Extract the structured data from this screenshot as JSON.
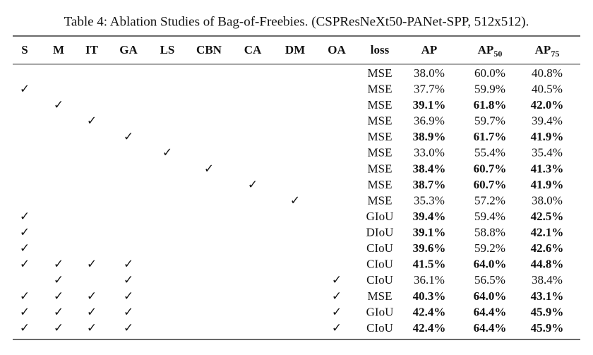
{
  "table": {
    "caption": "Table 4: Ablation Studies of Bag-of-Freebies. (CSPResNeXt50-PANet-SPP, 512x512).",
    "header": [
      "S",
      "M",
      "IT",
      "GA",
      "LS",
      "CBN",
      "CA",
      "DM",
      "OA",
      "loss",
      "AP",
      {
        "text": "AP",
        "sub": "50"
      },
      {
        "text": "AP",
        "sub": "75"
      }
    ],
    "rows": [
      {
        "checks": [
          null,
          null,
          null,
          null,
          null,
          null,
          null,
          null,
          null
        ],
        "loss": "MSE",
        "metrics": [
          "38.0%",
          "60.0%",
          "40.8%"
        ],
        "bold": [
          false,
          false,
          false
        ]
      },
      {
        "checks": [
          "✓",
          null,
          null,
          null,
          null,
          null,
          null,
          null,
          null
        ],
        "loss": "MSE",
        "metrics": [
          "37.7%",
          "59.9%",
          "40.5%"
        ],
        "bold": [
          false,
          false,
          false
        ]
      },
      {
        "checks": [
          null,
          "✓",
          null,
          null,
          null,
          null,
          null,
          null,
          null
        ],
        "loss": "MSE",
        "metrics": [
          "39.1%",
          "61.8%",
          "42.0%"
        ],
        "bold": [
          true,
          true,
          true
        ]
      },
      {
        "checks": [
          null,
          null,
          "✓",
          null,
          null,
          null,
          null,
          null,
          null
        ],
        "loss": "MSE",
        "metrics": [
          "36.9%",
          "59.7%",
          "39.4%"
        ],
        "bold": [
          false,
          false,
          false
        ]
      },
      {
        "checks": [
          null,
          null,
          null,
          "✓",
          null,
          null,
          null,
          null,
          null
        ],
        "loss": "MSE",
        "metrics": [
          "38.9%",
          "61.7%",
          "41.9%"
        ],
        "bold": [
          true,
          true,
          true
        ]
      },
      {
        "checks": [
          null,
          null,
          null,
          null,
          "✓",
          null,
          null,
          null,
          null
        ],
        "loss": "MSE",
        "metrics": [
          "33.0%",
          "55.4%",
          "35.4%"
        ],
        "bold": [
          false,
          false,
          false
        ]
      },
      {
        "checks": [
          null,
          null,
          null,
          null,
          null,
          "✓",
          null,
          null,
          null
        ],
        "loss": "MSE",
        "metrics": [
          "38.4%",
          "60.7%",
          "41.3%"
        ],
        "bold": [
          true,
          true,
          true
        ]
      },
      {
        "checks": [
          null,
          null,
          null,
          null,
          null,
          null,
          "✓",
          null,
          null
        ],
        "loss": "MSE",
        "metrics": [
          "38.7%",
          "60.7%",
          "41.9%"
        ],
        "bold": [
          true,
          true,
          true
        ]
      },
      {
        "checks": [
          null,
          null,
          null,
          null,
          null,
          null,
          null,
          "✓",
          null
        ],
        "loss": "MSE",
        "metrics": [
          "35.3%",
          "57.2%",
          "38.0%"
        ],
        "bold": [
          false,
          false,
          false
        ]
      },
      {
        "checks": [
          "✓",
          null,
          null,
          null,
          null,
          null,
          null,
          null,
          null
        ],
        "loss": "GIoU",
        "metrics": [
          "39.4%",
          "59.4%",
          "42.5%"
        ],
        "bold": [
          true,
          false,
          true
        ]
      },
      {
        "checks": [
          "✓",
          null,
          null,
          null,
          null,
          null,
          null,
          null,
          null
        ],
        "loss": "DIoU",
        "metrics": [
          "39.1%",
          "58.8%",
          "42.1%"
        ],
        "bold": [
          true,
          false,
          true
        ]
      },
      {
        "checks": [
          "✓",
          null,
          null,
          null,
          null,
          null,
          null,
          null,
          null
        ],
        "loss": "CIoU",
        "metrics": [
          "39.6%",
          "59.2%",
          "42.6%"
        ],
        "bold": [
          true,
          false,
          true
        ]
      },
      {
        "checks": [
          "✓",
          "✓",
          "✓",
          "✓",
          null,
          null,
          null,
          null,
          null
        ],
        "loss": "CIoU",
        "metrics": [
          "41.5%",
          "64.0%",
          "44.8%"
        ],
        "bold": [
          true,
          true,
          true
        ]
      },
      {
        "checks": [
          null,
          "✓",
          null,
          "✓",
          null,
          null,
          null,
          null,
          "✓"
        ],
        "loss": "CIoU",
        "metrics": [
          "36.1%",
          "56.5%",
          "38.4%"
        ],
        "bold": [
          false,
          false,
          false
        ]
      },
      {
        "checks": [
          "✓",
          "✓",
          "✓",
          "✓",
          null,
          null,
          null,
          null,
          "✓"
        ],
        "loss": "MSE",
        "metrics": [
          "40.3%",
          "64.0%",
          "43.1%"
        ],
        "bold": [
          true,
          true,
          true
        ]
      },
      {
        "checks": [
          "✓",
          "✓",
          "✓",
          "✓",
          null,
          null,
          null,
          null,
          "✓"
        ],
        "loss": "GIoU",
        "metrics": [
          "42.4%",
          "64.4%",
          "45.9%"
        ],
        "bold": [
          true,
          true,
          true
        ]
      },
      {
        "checks": [
          "✓",
          "✓",
          "✓",
          "✓",
          null,
          null,
          null,
          null,
          "✓"
        ],
        "loss": "CIoU",
        "metrics": [
          "42.4%",
          "64.4%",
          "45.9%"
        ],
        "bold": [
          true,
          true,
          true
        ]
      }
    ]
  }
}
